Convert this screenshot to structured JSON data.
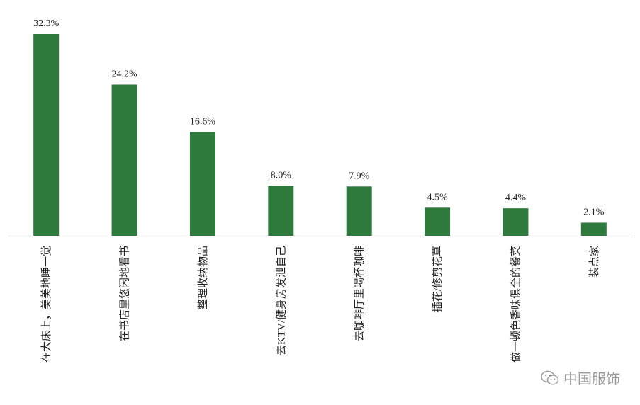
{
  "chart_data": {
    "type": "bar",
    "categories": [
      "在大床上，美美地睡一觉",
      "在书店里悠闲地看书",
      "整理收纳物品",
      "去KTV/健身房发泄自己",
      "去咖啡厅里喝杯咖啡",
      "插花/修剪花草",
      "做一顿色香味俱全的餐菜",
      "装点家"
    ],
    "values": [
      32.3,
      24.2,
      16.6,
      8.0,
      7.9,
      4.5,
      4.4,
      2.1
    ],
    "data_labels": [
      "32.3%",
      "24.2%",
      "16.6%",
      "8.0%",
      "7.9%",
      "4.5%",
      "4.4%",
      "2.1%"
    ],
    "bar_color": "#2e7a3c",
    "title": "",
    "xlabel": "",
    "ylabel": "",
    "ylim": [
      0,
      32.3
    ],
    "grid": false,
    "legend": "none"
  },
  "watermark": {
    "text": "中国服饰",
    "icon": "wechat-icon"
  }
}
